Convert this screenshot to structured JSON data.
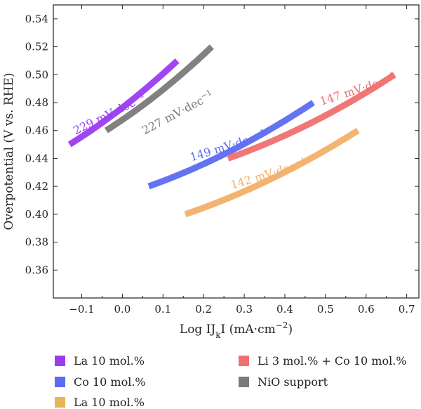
{
  "chart_data": {
    "type": "line",
    "xlabel": "Log IJ",
    "xlabel_sub": "k",
    "xlabel_tail": "I (mA·cm",
    "xlabel_sup": "−2",
    "xlabel_close": ")",
    "ylabel": "Overpotential (V vs. RHE)",
    "xlim": [
      -0.17,
      0.73
    ],
    "ylim": [
      0.34,
      0.55
    ],
    "xticks": [
      -0.1,
      0.0,
      0.1,
      0.2,
      0.3,
      0.4,
      0.5,
      0.6,
      0.7
    ],
    "xtick_labels": [
      "−0.1",
      "0.0",
      "0.1",
      "0.2",
      "0.3",
      "0.4",
      "0.5",
      "0.6",
      "0.7"
    ],
    "yticks": [
      0.36,
      0.38,
      0.4,
      0.42,
      0.44,
      0.46,
      0.48,
      0.5,
      0.52,
      0.54
    ],
    "ytick_labels": [
      "0.36",
      "0.38",
      "0.40",
      "0.42",
      "0.44",
      "0.46",
      "0.48",
      "0.50",
      "0.52",
      "0.54"
    ],
    "series": [
      {
        "key": "la",
        "color": "#9b3cf0",
        "x": [
          -0.13,
          0.135
        ],
        "y": [
          0.45,
          0.51
        ],
        "curvature": 0.4,
        "annotation": {
          "value": "229",
          "unit": " mV·dec",
          "sup": "−1",
          "x": -0.115,
          "y": 0.457,
          "angle": -26
        }
      },
      {
        "key": "nio",
        "color": "#7a7a7a",
        "x": [
          -0.04,
          0.22
        ],
        "y": [
          0.46,
          0.52
        ],
        "curvature": 0.4,
        "annotation": {
          "value": "227",
          "unit": " mV·dec",
          "sup": "−1",
          "x": 0.055,
          "y": 0.457,
          "angle": -28
        }
      },
      {
        "key": "co",
        "color": "#5b6cf0",
        "x": [
          0.065,
          0.47
        ],
        "y": [
          0.42,
          0.48
        ],
        "curvature": 0.6,
        "annotation": {
          "value": "149",
          "unit": " mV·dec",
          "sup": "−1",
          "x": 0.17,
          "y": 0.438,
          "angle": -17
        }
      },
      {
        "key": "lico",
        "color": "#f07070",
        "x": [
          0.26,
          0.67
        ],
        "y": [
          0.44,
          0.5
        ],
        "curvature": 0.6,
        "annotation": {
          "value": "147",
          "unit": " mV·dec",
          "sup": "−1",
          "x": 0.49,
          "y": 0.478,
          "angle": -18
        }
      },
      {
        "key": "la2",
        "color": "#f2b06a",
        "x": [
          0.155,
          0.58
        ],
        "y": [
          0.4,
          0.46
        ],
        "curvature": 0.6,
        "annotation": {
          "value": "142",
          "unit": " mV·dec",
          "sup": "−1",
          "x": 0.27,
          "y": 0.418,
          "angle": -17
        }
      }
    ],
    "legend": {
      "placement": "bottom",
      "items": [
        {
          "label": "La 10 mol.%",
          "color": "#9b3cf0"
        },
        {
          "label": "Li 3 mol.% + Co 10 mol.%",
          "color": "#f07070"
        },
        {
          "label": "Co 10 mol.%",
          "color": "#5b6cf0"
        },
        {
          "label": "NiO support",
          "color": "#7a7a7a"
        },
        {
          "label": "La 10 mol.%",
          "color": "#e8b45a"
        }
      ]
    }
  }
}
